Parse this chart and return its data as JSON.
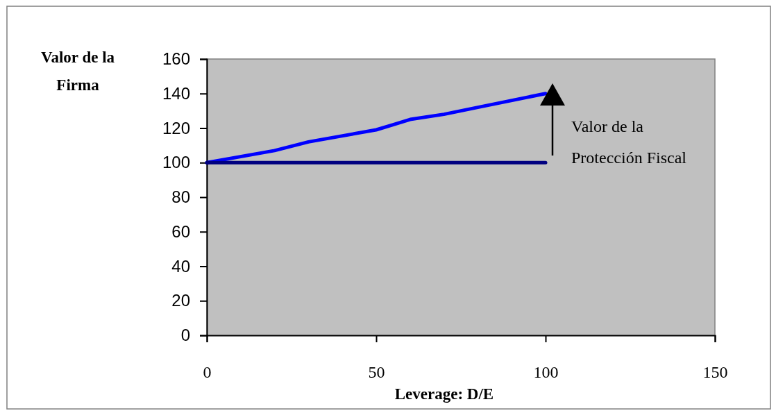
{
  "chart_data": {
    "type": "line",
    "xlabel": "Leverage: D/E",
    "ylabel": "Valor de la Firma",
    "xlim": [
      0,
      150
    ],
    "xticks": [
      0,
      50,
      100,
      150
    ],
    "ylim": [
      0,
      160
    ],
    "yticks": [
      0,
      20,
      40,
      60,
      80,
      100,
      120,
      140,
      160
    ],
    "grid": false,
    "marker": "none",
    "line_style": "solid",
    "series": [
      {
        "color": "#0000ff",
        "x": [
          0,
          20,
          30,
          50,
          55,
          60,
          70,
          80,
          100
        ],
        "values": [
          100,
          107,
          112,
          119,
          122,
          125,
          128,
          132,
          140
        ]
      },
      {
        "color": "#000080",
        "x": [
          0,
          100
        ],
        "values": [
          100,
          100
        ]
      }
    ],
    "annotations": [
      "Valor de la Protección Fiscal"
    ]
  }
}
